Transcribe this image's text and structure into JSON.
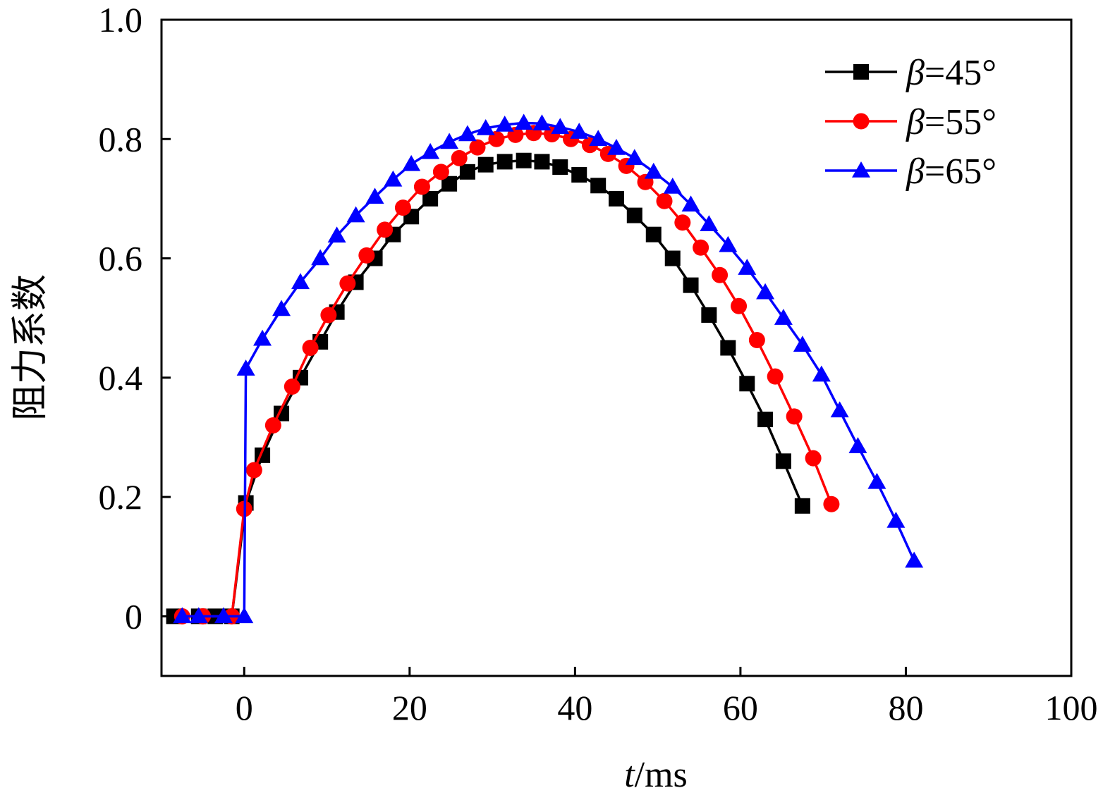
{
  "chart_data": {
    "type": "line",
    "xlabel_italic": "t",
    "xlabel_unit": "/ms",
    "ylabel": "阻力系数",
    "xlim": [
      -10,
      100
    ],
    "ylim": [
      -0.1,
      1.0
    ],
    "xticks": [
      0,
      20,
      40,
      60,
      80,
      100
    ],
    "xtick_labels": [
      "0",
      "20",
      "40",
      "60",
      "80",
      "100"
    ],
    "yticks": [
      0,
      0.2,
      0.4,
      0.6,
      0.8,
      1.0
    ],
    "ytick_labels": [
      "0",
      "0.2",
      "0.4",
      "0.6",
      "0.8",
      "1.0"
    ],
    "legend_position": "top-right",
    "series": [
      {
        "name": "β=45°",
        "symbol": "β",
        "suffix": "=45°",
        "color": "#000000",
        "marker": "square",
        "x": [
          -8.5,
          -5.5,
          -3.5,
          -1.5,
          0.2,
          2.2,
          4.5,
          6.8,
          9.2,
          11.2,
          13.5,
          15.8,
          18.0,
          20.2,
          22.5,
          24.8,
          27.0,
          29.2,
          31.5,
          33.8,
          36.0,
          38.2,
          40.5,
          42.8,
          45.0,
          47.2,
          49.5,
          51.8,
          54.0,
          56.2,
          58.5,
          60.8,
          63.0,
          65.2,
          67.5
        ],
        "y": [
          0.0,
          0.0,
          0.0,
          0.0,
          0.19,
          0.27,
          0.34,
          0.4,
          0.46,
          0.51,
          0.56,
          0.6,
          0.64,
          0.67,
          0.7,
          0.725,
          0.745,
          0.757,
          0.762,
          0.764,
          0.762,
          0.753,
          0.74,
          0.722,
          0.7,
          0.672,
          0.64,
          0.6,
          0.555,
          0.505,
          0.45,
          0.39,
          0.33,
          0.26,
          0.185
        ]
      },
      {
        "name": "β=55°",
        "symbol": "β",
        "suffix": "=55°",
        "color": "#ff0000",
        "marker": "circle",
        "x": [
          -7.5,
          -5.0,
          -1.5,
          0.0,
          1.2,
          3.5,
          5.8,
          8.0,
          10.2,
          12.5,
          14.8,
          17.0,
          19.2,
          21.5,
          23.8,
          26.0,
          28.2,
          30.5,
          32.8,
          35.0,
          37.2,
          39.5,
          41.8,
          44.0,
          46.2,
          48.5,
          50.8,
          53.0,
          55.2,
          57.5,
          59.8,
          62.0,
          64.2,
          66.5,
          68.8,
          71.0
        ],
        "y": [
          0.0,
          0.0,
          0.0,
          0.18,
          0.245,
          0.32,
          0.385,
          0.45,
          0.505,
          0.558,
          0.605,
          0.648,
          0.685,
          0.72,
          0.745,
          0.768,
          0.786,
          0.8,
          0.807,
          0.81,
          0.808,
          0.8,
          0.79,
          0.775,
          0.755,
          0.728,
          0.696,
          0.66,
          0.618,
          0.572,
          0.52,
          0.463,
          0.402,
          0.335,
          0.265,
          0.188
        ]
      },
      {
        "name": "β=65°",
        "symbol": "β",
        "suffix": "=65°",
        "color": "#0000ff",
        "marker": "triangle",
        "x": [
          -7.5,
          -5.5,
          -2.5,
          0.0,
          0.2,
          2.2,
          4.5,
          6.8,
          9.2,
          11.2,
          13.5,
          15.8,
          18.0,
          20.2,
          22.5,
          24.8,
          27.0,
          29.2,
          31.5,
          33.8,
          36.0,
          38.2,
          40.5,
          42.8,
          45.0,
          47.2,
          49.5,
          51.8,
          54.0,
          56.2,
          58.5,
          60.8,
          63.0,
          65.2,
          67.5,
          69.8,
          72.0,
          74.2,
          76.5,
          78.8,
          81.0
        ],
        "y": [
          0.0,
          0.0,
          0.0,
          0.0,
          0.415,
          0.465,
          0.515,
          0.56,
          0.6,
          0.638,
          0.672,
          0.703,
          0.732,
          0.758,
          0.778,
          0.795,
          0.808,
          0.818,
          0.824,
          0.827,
          0.826,
          0.82,
          0.812,
          0.8,
          0.785,
          0.768,
          0.745,
          0.72,
          0.69,
          0.657,
          0.622,
          0.584,
          0.543,
          0.5,
          0.455,
          0.405,
          0.345,
          0.285,
          0.225,
          0.16,
          0.093
        ]
      }
    ]
  }
}
